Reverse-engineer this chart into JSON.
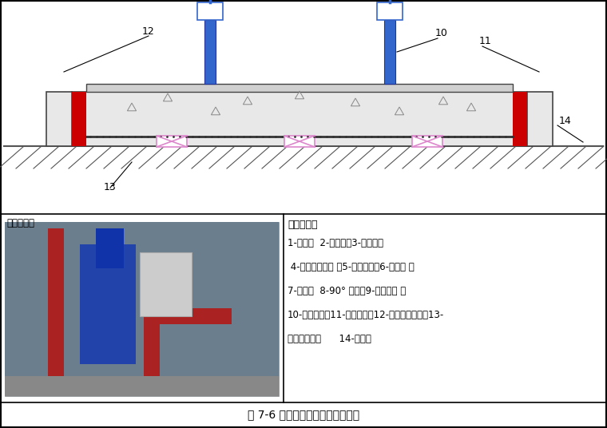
{
  "title": "图 7-6 立式水泵与管路连接示意图",
  "bg_color": "#ffffff",
  "red_color": "#cc0000",
  "blue_color": "#3366cc",
  "pink_color": "#dd88cc",
  "legend_title": "符号说明：",
  "legend_lines": [
    "1-闸阀；  2-除污器；3-软接头；",
    " 4-压力表连旋塞 ；5-立式水泵；6-止回阀 ；",
    "7-支架；  8-90° 弯头；9-弹性吊架 ；",
    "10-浮动底座；11-隔离夹板；12-外部等级夹板；13-",
    "隔振橡胶垫；      14-地面；"
  ],
  "example_label": "实施案例："
}
